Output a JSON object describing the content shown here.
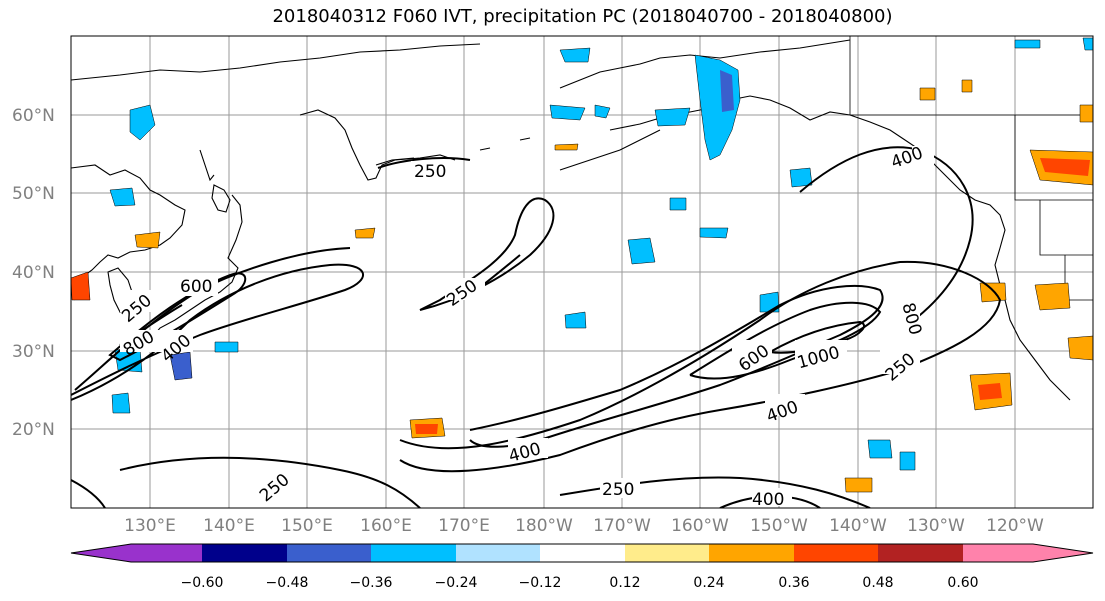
{
  "title": "2018040312 F060 IVT, precipitation PC (2018040700 - 2018040800)",
  "map": {
    "lat_labels": [
      "60°N",
      "50°N",
      "40°N",
      "30°N",
      "20°N"
    ],
    "lon_labels": [
      "130°E",
      "140°E",
      "150°E",
      "160°E",
      "170°E",
      "180°W",
      "170°W",
      "160°W",
      "150°W",
      "140°W",
      "130°W",
      "120°W"
    ],
    "gridlines": true,
    "coastlines": true
  },
  "ivt_contours": {
    "levels": [
      250,
      400,
      600,
      800,
      1000
    ],
    "labels": [
      "250",
      "250",
      "600",
      "800",
      "400",
      "250",
      "400",
      "400",
      "250",
      "250",
      "400",
      "600",
      "1000",
      "800",
      "250",
      "400"
    ]
  },
  "colorbar": {
    "ticks": [
      "−0.60",
      "−0.48",
      "−0.36",
      "−0.24",
      "−0.12",
      "0.12",
      "0.24",
      "0.36",
      "0.48",
      "0.60"
    ],
    "colors": [
      "#9932cc",
      "#00008b",
      "#3a5fcd",
      "#00bfff",
      "#b0e2ff",
      "#ffffff",
      "#ffec8b",
      "#ffa500",
      "#ff4500",
      "#b22222",
      "#ff82ab"
    ],
    "extend": "both"
  }
}
